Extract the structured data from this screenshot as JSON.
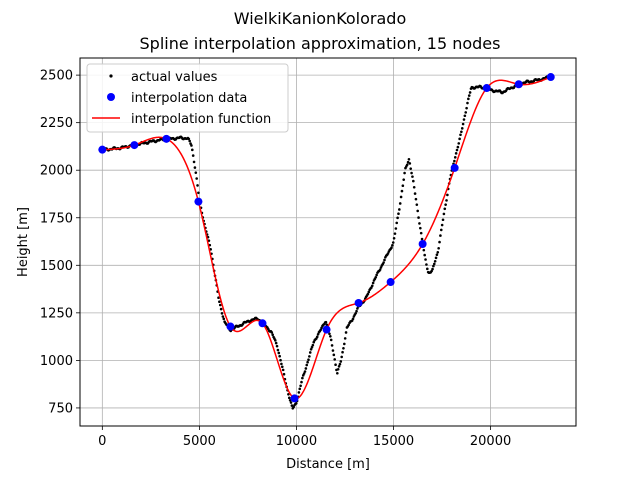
{
  "chart_data": {
    "type": "line",
    "title": "WielkiKanionKolorado",
    "subtitle": "Spline interpolation approximation, 15 nodes",
    "xlabel": "Distance [m]",
    "ylabel": "Height [m]",
    "xlim": [
      -1150,
      24400
    ],
    "ylim": [
      655,
      2590
    ],
    "xticks": [
      0,
      5000,
      10000,
      15000,
      20000
    ],
    "yticks": [
      750,
      1000,
      1250,
      1500,
      1750,
      2000,
      2250,
      2500
    ],
    "grid": true,
    "legend_position": "top-left",
    "series": [
      {
        "name": "actual values",
        "kind": "dots",
        "color": "#000000",
        "keypoints": [
          [
            0,
            2108
          ],
          [
            500,
            2112
          ],
          [
            1000,
            2118
          ],
          [
            1500,
            2130
          ],
          [
            2000,
            2140
          ],
          [
            2500,
            2150
          ],
          [
            3000,
            2160
          ],
          [
            3500,
            2165
          ],
          [
            4000,
            2170
          ],
          [
            4400,
            2168
          ],
          [
            4600,
            2130
          ],
          [
            4800,
            2000
          ],
          [
            5000,
            1840
          ],
          [
            5300,
            1700
          ],
          [
            5600,
            1580
          ],
          [
            5800,
            1450
          ],
          [
            6000,
            1320
          ],
          [
            6300,
            1200
          ],
          [
            6600,
            1160
          ],
          [
            6900,
            1175
          ],
          [
            7200,
            1190
          ],
          [
            7600,
            1210
          ],
          [
            8000,
            1220
          ],
          [
            8300,
            1195
          ],
          [
            8700,
            1150
          ],
          [
            9000,
            1080
          ],
          [
            9300,
            950
          ],
          [
            9500,
            860
          ],
          [
            9700,
            780
          ],
          [
            9800,
            745
          ],
          [
            10000,
            780
          ],
          [
            10300,
            900
          ],
          [
            10600,
            1000
          ],
          [
            10900,
            1100
          ],
          [
            11200,
            1150
          ],
          [
            11500,
            1210
          ],
          [
            11800,
            1100
          ],
          [
            12000,
            990
          ],
          [
            12100,
            930
          ],
          [
            12300,
            1000
          ],
          [
            12600,
            1170
          ],
          [
            12900,
            1220
          ],
          [
            13200,
            1280
          ],
          [
            13600,
            1330
          ],
          [
            14000,
            1420
          ],
          [
            14400,
            1500
          ],
          [
            14700,
            1560
          ],
          [
            15000,
            1620
          ],
          [
            15300,
            1800
          ],
          [
            15600,
            2000
          ],
          [
            15800,
            2060
          ],
          [
            16000,
            1950
          ],
          [
            16300,
            1750
          ],
          [
            16600,
            1550
          ],
          [
            16800,
            1460
          ],
          [
            17000,
            1470
          ],
          [
            17300,
            1580
          ],
          [
            17600,
            1770
          ],
          [
            17900,
            1950
          ],
          [
            18200,
            2080
          ],
          [
            18500,
            2200
          ],
          [
            18800,
            2350
          ],
          [
            19000,
            2430
          ],
          [
            19300,
            2440
          ],
          [
            19700,
            2430
          ],
          [
            20100,
            2420
          ],
          [
            20600,
            2410
          ],
          [
            21200,
            2440
          ],
          [
            21700,
            2460
          ],
          [
            22200,
            2470
          ],
          [
            22700,
            2480
          ],
          [
            23200,
            2495
          ]
        ]
      },
      {
        "name": "interpolation data",
        "kind": "markers",
        "color": "#0000ff",
        "points": [
          [
            0,
            2108
          ],
          [
            1650,
            2132
          ],
          [
            3300,
            2165
          ],
          [
            4950,
            1835
          ],
          [
            6600,
            1178
          ],
          [
            8250,
            1195
          ],
          [
            9900,
            800
          ],
          [
            11550,
            1162
          ],
          [
            13200,
            1302
          ],
          [
            14850,
            1412
          ],
          [
            16500,
            1612
          ],
          [
            18150,
            2012
          ],
          [
            19800,
            2432
          ],
          [
            21450,
            2452
          ],
          [
            23100,
            2490
          ]
        ]
      },
      {
        "name": "interpolation function",
        "kind": "line",
        "color": "#ff0000",
        "points": [
          [
            0,
            2108
          ],
          [
            1650,
            2132
          ],
          [
            3300,
            2165
          ],
          [
            4950,
            1835
          ],
          [
            6600,
            1178
          ],
          [
            8250,
            1195
          ],
          [
            9900,
            800
          ],
          [
            11550,
            1162
          ],
          [
            13200,
            1302
          ],
          [
            14850,
            1412
          ],
          [
            16500,
            1612
          ],
          [
            18150,
            2012
          ],
          [
            19800,
            2432
          ],
          [
            21450,
            2452
          ],
          [
            23100,
            2490
          ]
        ]
      }
    ]
  }
}
